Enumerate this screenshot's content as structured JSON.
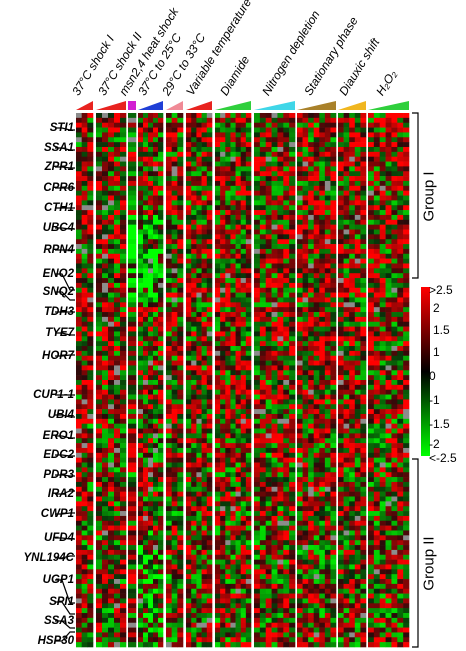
{
  "conditions": [
    {
      "label": "37°C shock I",
      "color": "#e8231f",
      "ramp": "up"
    },
    {
      "label": "37°C shock II",
      "color": "#e8231f",
      "ramp": "up"
    },
    {
      "label": "msn2,4 heat shock",
      "color": "#d21fd2",
      "ramp": "flat"
    },
    {
      "label": "37°C to 25°C",
      "color": "#1f3fd6",
      "ramp": "up"
    },
    {
      "label": "29°C to 33°C",
      "color": "#f08a96",
      "ramp": "up"
    },
    {
      "label": "Variable temperature",
      "color": "#e8231f",
      "ramp": "up"
    },
    {
      "label": "Diamide",
      "color": "#2fcf3c",
      "ramp": "up"
    },
    {
      "label": "Nitrogen depletion",
      "color": "#3fd6e8",
      "ramp": "up"
    },
    {
      "label": "Stationary phase",
      "color": "#a9812a",
      "ramp": "up"
    },
    {
      "label": "Diauxic shift",
      "color": "#f0b61f",
      "ramp": "up"
    },
    {
      "label": "H₂O₂",
      "color": "#2fcf3c",
      "ramp": "up"
    }
  ],
  "genes": [
    "STI1",
    "SSA1",
    "ZPR1",
    "CPR6",
    "CTH1",
    "UBC4",
    "RPN4",
    "ENO2",
    "SNQ2",
    "TDH3",
    "TYE7",
    "HOR7",
    "CUP1-1",
    "UBI4",
    "ERO1",
    "EDC2",
    "PDR3",
    "IRA2",
    "CWP1",
    "UFD4",
    "YNL194C",
    "UGP1",
    "SPI1",
    "SSA3",
    "HSP30"
  ],
  "groups": [
    {
      "label": "Group I"
    },
    {
      "label": "Group II"
    }
  ],
  "color_scale": {
    "labels": [
      ">2.5",
      "2",
      "1.5",
      "1",
      "0",
      "-1",
      "-1.5",
      "-2",
      "<-2.5"
    ],
    "high_color": "#ff0000",
    "mid_color": "#000000",
    "low_color": "#00ff00",
    "missing_color": "#8c8c8c"
  }
}
